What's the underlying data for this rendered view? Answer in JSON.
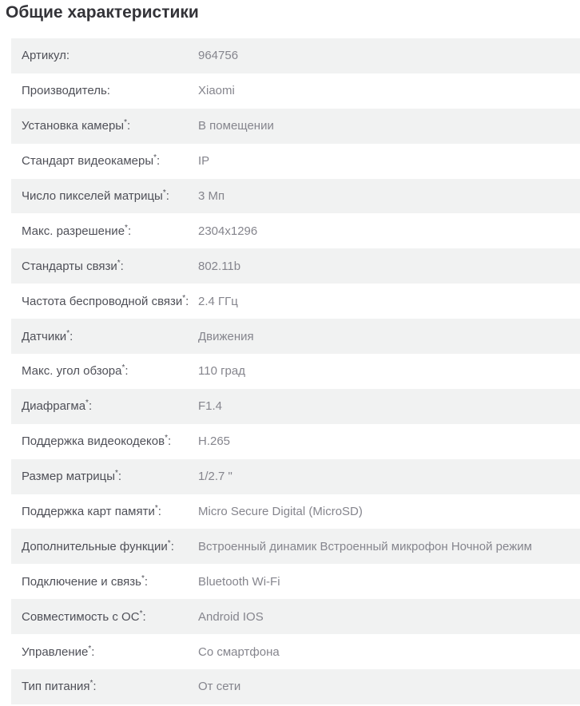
{
  "page": {
    "title": "Общие характеристики"
  },
  "colors": {
    "row_alt_bg": "#f1f2f2",
    "title_text": "#333338",
    "label_text": "#4f5058",
    "value_text": "#85858d"
  },
  "specs": {
    "asterisk": "*",
    "colon": ":",
    "rows": [
      {
        "label": "Артикул",
        "has_asterisk": false,
        "value": "964756"
      },
      {
        "label": "Производитель",
        "has_asterisk": false,
        "value": "Xiaomi"
      },
      {
        "label": "Установка камеры",
        "has_asterisk": true,
        "value": "В помещении"
      },
      {
        "label": "Стандарт видеокамеры",
        "has_asterisk": true,
        "value": "IP"
      },
      {
        "label": "Число пикселей матрицы",
        "has_asterisk": true,
        "value": "3 Мп"
      },
      {
        "label": "Макс. разрешение",
        "has_asterisk": true,
        "value": "2304x1296"
      },
      {
        "label": "Стандарты связи",
        "has_asterisk": true,
        "value": "802.11b"
      },
      {
        "label": "Частота беспроводной связи",
        "has_asterisk": true,
        "value": "2.4 ГГц"
      },
      {
        "label": "Датчики",
        "has_asterisk": true,
        "value": "Движения"
      },
      {
        "label": "Макс. угол обзора",
        "has_asterisk": true,
        "value": "110 град"
      },
      {
        "label": "Диафрагма",
        "has_asterisk": true,
        "value": "F1.4"
      },
      {
        "label": "Поддержка видеокодеков",
        "has_asterisk": true,
        "value": "H.265"
      },
      {
        "label": "Размер матрицы",
        "has_asterisk": true,
        "value": "1/2.7 \""
      },
      {
        "label": "Поддержка карт памяти",
        "has_asterisk": true,
        "value": "Micro Secure Digital (MicroSD)"
      },
      {
        "label": "Дополнительные функции",
        "has_asterisk": true,
        "value": "Встроенный динамик Встроенный микрофон Ночной режим"
      },
      {
        "label": "Подключение и связь",
        "has_asterisk": true,
        "value": "Bluetooth Wi-Fi"
      },
      {
        "label": "Совместимость с ОС",
        "has_asterisk": true,
        "value": "Android IOS"
      },
      {
        "label": "Управление",
        "has_asterisk": true,
        "value": "Со смартфона"
      },
      {
        "label": "Тип питания",
        "has_asterisk": true,
        "value": "От сети"
      }
    ]
  }
}
